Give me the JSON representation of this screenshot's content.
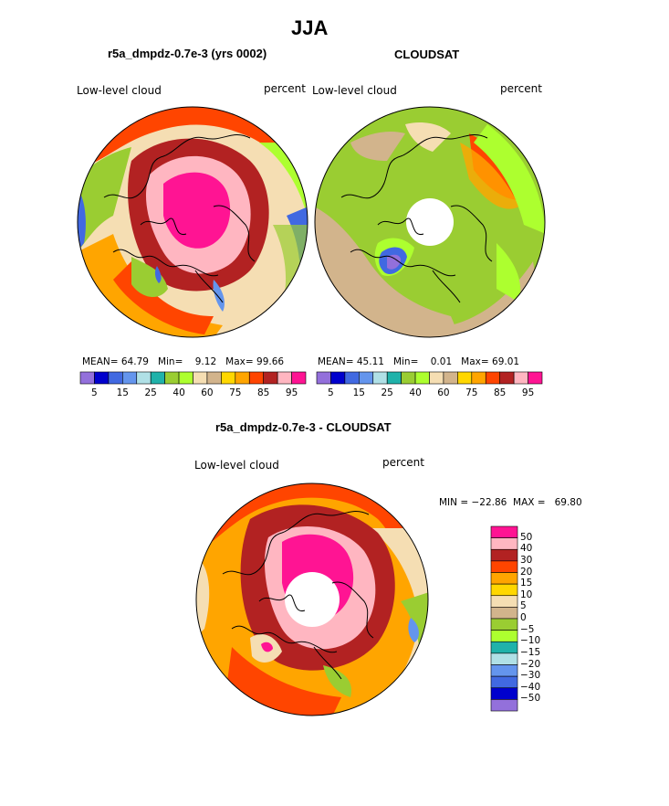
{
  "figure": {
    "title": "JJA",
    "panel_left_title": "r5a_dmpdz-0.7e-3 (yrs 0002)",
    "panel_right_title": "CLOUDSAT",
    "panel_bottom_title": "r5a_dmpdz-0.7e-3 - CLOUDSAT"
  },
  "chart_data": [
    {
      "type": "heatmap",
      "projection": "north-polar-stereographic",
      "title": "r5a_dmpdz-0.7e-3 (yrs 0002)",
      "variable_label": "Low-level cloud",
      "units": "percent",
      "stats": {
        "mean": "64.79",
        "min": "9.12",
        "max": "99.66"
      },
      "stat_labels": {
        "mean": "MEAN=",
        "min": "Min=",
        "max": "Max="
      },
      "colorbar": {
        "orientation": "horizontal",
        "colors": [
          "#9370db",
          "#0000cd",
          "#4169e1",
          "#6495ed",
          "#b0e0e6",
          "#20b2aa",
          "#9acd32",
          "#adff2f",
          "#f5deb3",
          "#d2b48c",
          "#ffd700",
          "#ffa500",
          "#ff4500",
          "#b22222",
          "#ffb6c1",
          "#ff1493"
        ],
        "tick_labels": [
          "5",
          "15",
          "25",
          "40",
          "60",
          "75",
          "85",
          "95"
        ]
      }
    },
    {
      "type": "heatmap",
      "projection": "north-polar-stereographic",
      "title": "CLOUDSAT",
      "variable_label": "Low-level cloud",
      "units": "percent",
      "stats": {
        "mean": "45.11",
        "min": "0.01",
        "max": "69.01"
      },
      "stat_labels": {
        "mean": "MEAN=",
        "min": "Min=",
        "max": "Max="
      },
      "colorbar": {
        "orientation": "horizontal",
        "colors": [
          "#9370db",
          "#0000cd",
          "#4169e1",
          "#6495ed",
          "#b0e0e6",
          "#20b2aa",
          "#9acd32",
          "#adff2f",
          "#f5deb3",
          "#d2b48c",
          "#ffd700",
          "#ffa500",
          "#ff4500",
          "#b22222",
          "#ffb6c1",
          "#ff1493"
        ],
        "tick_labels": [
          "5",
          "15",
          "25",
          "40",
          "60",
          "75",
          "85",
          "95"
        ]
      }
    },
    {
      "type": "heatmap",
      "projection": "north-polar-stereographic",
      "title": "r5a_dmpdz-0.7e-3 - CLOUDSAT",
      "variable_label": "Low-level cloud",
      "units": "percent",
      "stats_text": "MIN = −22.86  MAX =   69.80",
      "colorbar": {
        "orientation": "vertical",
        "colors_top_to_bottom": [
          "#ff1493",
          "#ffb6c1",
          "#b22222",
          "#ff4500",
          "#ffa500",
          "#ffd700",
          "#f5deb3",
          "#d2b48c",
          "#9acd32",
          "#adff2f",
          "#20b2aa",
          "#b0e0e6",
          "#6495ed",
          "#4169e1",
          "#0000cd",
          "#9370db"
        ],
        "tick_labels_top_to_bottom": [
          "50",
          "40",
          "30",
          "20",
          "15",
          "10",
          "5",
          "0",
          "−5",
          "−10",
          "−15",
          "−20",
          "−30",
          "−40",
          "−50"
        ]
      }
    }
  ]
}
